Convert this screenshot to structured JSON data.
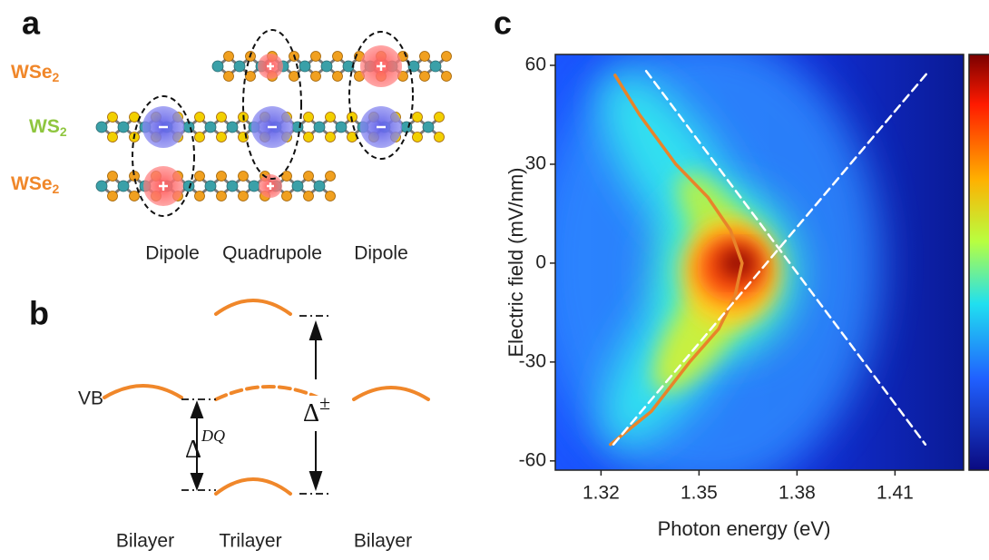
{
  "panel_a": {
    "label": "a",
    "layers": [
      {
        "text": "WSe",
        "sub": "2"
      },
      {
        "text": "WS",
        "sub": "2"
      },
      {
        "text": "WSe",
        "sub": "2"
      }
    ],
    "excitons": [
      "Dipole",
      "Quadrupole",
      "Dipole"
    ]
  },
  "panel_b": {
    "label": "b",
    "band": "VB",
    "gaps": [
      {
        "symbol": "Δ",
        "sup": "DQ"
      },
      {
        "symbol": "Δ",
        "sup": "±"
      }
    ],
    "structures": [
      "Bilayer",
      "Trilayer",
      "Bilayer"
    ]
  },
  "chart_data": {
    "type": "line",
    "panel_label": "c",
    "xlabel": "Photon energy (eV)",
    "ylabel": "Electric field (mV/nm)",
    "xlim": [
      1.306,
      1.431
    ],
    "ylim": [
      -62.8,
      63.3
    ],
    "xticks": [
      1.32,
      1.35,
      1.38,
      1.41
    ],
    "yticks": [
      -60,
      -30,
      0,
      30,
      60
    ],
    "series": [
      {
        "color": "#e8842a",
        "dashed": false,
        "x": [
          1.3243,
          1.3318,
          1.3429,
          1.3527,
          1.3596,
          1.3632,
          1.361,
          1.356,
          1.3471,
          1.3354,
          1.3229
        ],
        "values": [
          57,
          45,
          30,
          20,
          10,
          0,
          -10,
          -20,
          -30,
          -45,
          -55
        ]
      },
      {
        "color": "#ffffff",
        "dashed": true,
        "x": [
          1.3338,
          1.4193
        ],
        "values": [
          58.3,
          -55
        ]
      },
      {
        "color": "#ffffff",
        "dashed": true,
        "x": [
          1.3238,
          1.4204
        ],
        "values": [
          -55,
          58.3
        ]
      }
    ]
  }
}
